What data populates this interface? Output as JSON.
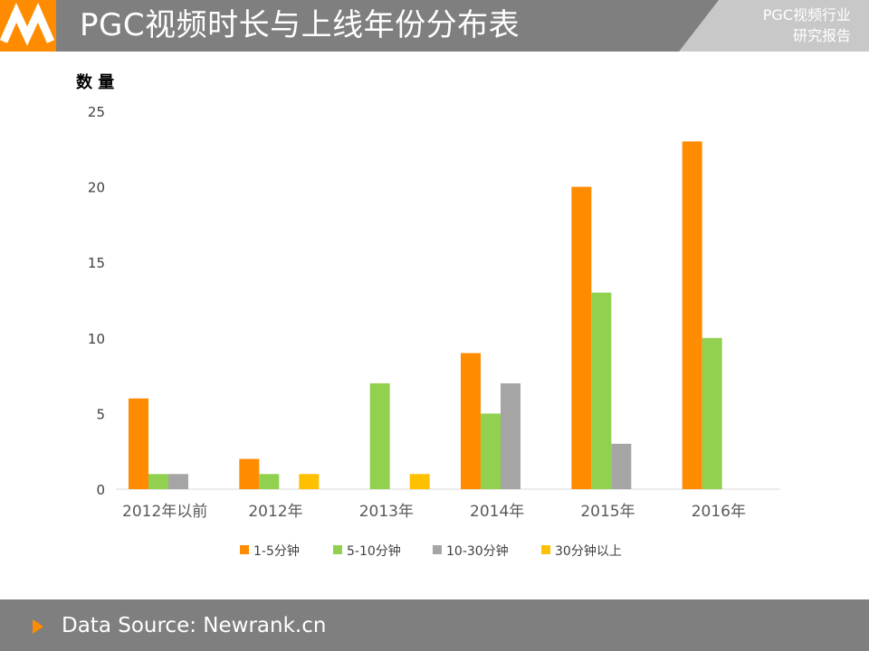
{
  "header": {
    "title": "PGC视频时长与上线年份分布表",
    "corner_line1": "PGC视频行业",
    "corner_line2": "研究报告"
  },
  "footer": {
    "source": "Data Source: Newrank.cn"
  },
  "colors": {
    "header_bg": "#7f7f7f",
    "accent": "#ff8c00",
    "series": [
      "#ff8c00",
      "#92d050",
      "#a5a5a5",
      "#ffc000"
    ]
  },
  "chart_data": {
    "type": "bar",
    "ylabel": "数 量",
    "xlabel": "",
    "ylim": [
      0,
      25
    ],
    "yticks": [
      0,
      5,
      10,
      15,
      20,
      25
    ],
    "categories": [
      "2012年以前",
      "2012年",
      "2013年",
      "2014年",
      "2015年",
      "2016年"
    ],
    "series": [
      {
        "name": "1-5分钟",
        "values": [
          6,
          2,
          0,
          9,
          20,
          23
        ]
      },
      {
        "name": "5-10分钟",
        "values": [
          1,
          1,
          7,
          5,
          13,
          10
        ]
      },
      {
        "name": "10-30分钟",
        "values": [
          1,
          0,
          0,
          7,
          3,
          0
        ]
      },
      {
        "name": "30分钟以上",
        "values": [
          0,
          1,
          1,
          0,
          0,
          0
        ]
      }
    ],
    "legend": "bottom"
  }
}
